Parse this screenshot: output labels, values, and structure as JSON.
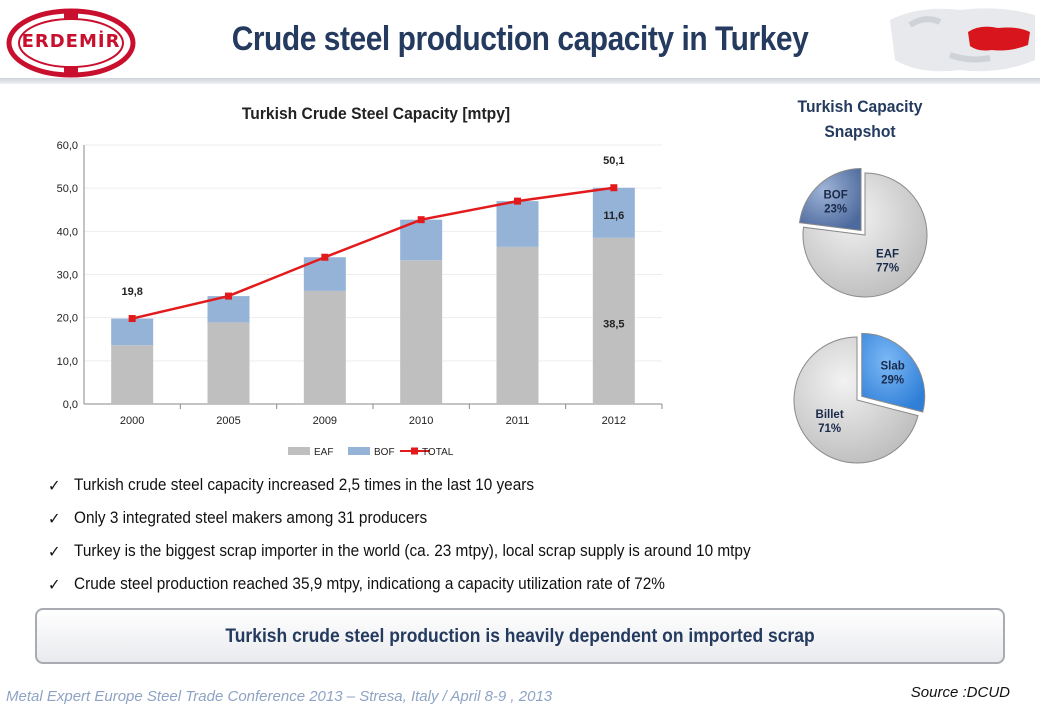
{
  "header": {
    "title": "Crude steel production capacity in Turkey",
    "logo_text": "ERDEMİR"
  },
  "colors": {
    "eaf": "#bfbfbf",
    "bof": "#95b3d7",
    "total": "#e31a1c",
    "title": "#243a5e"
  },
  "chart_data": [
    {
      "type": "bar",
      "stacked": true,
      "title": "Turkish Crude Steel Capacity [mtpy]",
      "categories": [
        "2000",
        "2005",
        "2009",
        "2010",
        "2011",
        "2012"
      ],
      "series": [
        {
          "name": "EAF",
          "kind": "bar",
          "values": [
            13.6,
            18.9,
            26.2,
            33.3,
            36.4,
            38.5
          ]
        },
        {
          "name": "BOF",
          "kind": "bar",
          "values": [
            6.2,
            6.1,
            7.8,
            9.4,
            10.6,
            11.6
          ]
        },
        {
          "name": "TOTAL",
          "kind": "line",
          "values": [
            19.8,
            25.0,
            34.0,
            42.7,
            47.0,
            50.1
          ]
        }
      ],
      "ylim": [
        0,
        60
      ],
      "yticks": [
        "0,0",
        "10,0",
        "20,0",
        "30,0",
        "40,0",
        "50,0",
        "60,0"
      ],
      "data_labels": [
        {
          "category": "2000",
          "series": "TOTAL",
          "text": "19,8"
        },
        {
          "category": "2012",
          "series": "TOTAL",
          "text": "50,1"
        },
        {
          "category": "2012",
          "series": "BOF",
          "text": "11,6"
        },
        {
          "category": "2012",
          "series": "EAF",
          "text": "38,5"
        }
      ],
      "legend": [
        "EAF",
        "BOF",
        "TOTAL"
      ],
      "legend_position": "bottom",
      "grid": true
    },
    {
      "type": "pie",
      "title": "Turkish Capacity Snapshot",
      "slices": [
        {
          "label": "BOF",
          "percent_label": "23%",
          "value": 23
        },
        {
          "label": "EAF",
          "percent_label": "77%",
          "value": 77
        }
      ]
    },
    {
      "type": "pie",
      "slices": [
        {
          "label": "Slab",
          "percent_label": "29%",
          "value": 29
        },
        {
          "label": "Billet",
          "percent_label": "71%",
          "value": 71
        }
      ]
    }
  ],
  "bullets": [
    "Turkish crude steel capacity increased 2,5 times in the last 10 years",
    "Only 3 integrated steel makers among 31 producers",
    "Turkey is the biggest scrap importer in the world (ca. 23 mtpy), local scrap supply is around 10 mtpy",
    "Crude steel production reached 35,9 mtpy, indicationg a capacity utilization rate of 72%"
  ],
  "callout": "Turkish crude steel production is heavily dependent on imported scrap",
  "footer": {
    "conference": "Metal Expert Europe Steel Trade Conference 2013 – Stresa, Italy / April 8-9 , 2013",
    "source": "Source :DCUD"
  }
}
